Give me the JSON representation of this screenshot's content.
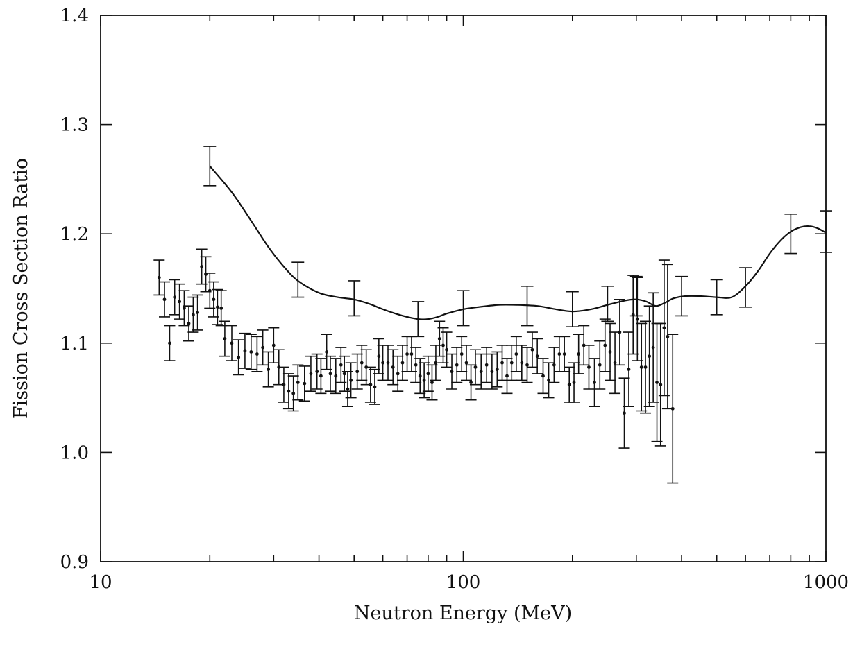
{
  "chart_data": {
    "type": "scatter",
    "title": "",
    "xlabel": "Neutron Energy (MeV)",
    "ylabel": "Fission Cross Section Ratio",
    "xscale": "log",
    "xlim": [
      10,
      1000
    ],
    "ylim": [
      0.9,
      1.4
    ],
    "x_ticks": [
      "10",
      "100",
      "1000"
    ],
    "y_ticks": [
      "0.9",
      "1.0",
      "1.1",
      "1.2",
      "1.3",
      "1.4"
    ],
    "grid": false,
    "legend": "none",
    "colors": {
      "ink": "#111111",
      "background": "#ffffff"
    },
    "series": [
      {
        "kind": "points-with-error-bars",
        "points": [
          [
            14.5,
            1.16,
            0.016
          ],
          [
            15.0,
            1.14,
            0.016
          ],
          [
            15.5,
            1.1,
            0.016
          ],
          [
            16.0,
            1.142,
            0.016
          ],
          [
            16.5,
            1.138,
            0.016
          ],
          [
            17.0,
            1.132,
            0.016
          ],
          [
            17.5,
            1.118,
            0.016
          ],
          [
            18.0,
            1.126,
            0.016
          ],
          [
            18.5,
            1.128,
            0.016
          ],
          [
            19.0,
            1.17,
            0.016
          ],
          [
            19.5,
            1.163,
            0.016
          ],
          [
            20.0,
            1.148,
            0.016
          ],
          [
            20.5,
            1.14,
            0.016
          ],
          [
            21.0,
            1.133,
            0.016
          ],
          [
            21.5,
            1.132,
            0.016
          ],
          [
            22.0,
            1.104,
            0.016
          ],
          [
            23.0,
            1.1,
            0.016
          ],
          [
            24.0,
            1.087,
            0.016
          ],
          [
            25.0,
            1.093,
            0.016
          ],
          [
            26.0,
            1.092,
            0.016
          ],
          [
            27.0,
            1.09,
            0.016
          ],
          [
            28.0,
            1.096,
            0.016
          ],
          [
            29.0,
            1.076,
            0.016
          ],
          [
            30.0,
            1.098,
            0.016
          ],
          [
            31.0,
            1.078,
            0.016
          ],
          [
            32.0,
            1.062,
            0.016
          ],
          [
            33.0,
            1.056,
            0.016
          ],
          [
            34.0,
            1.054,
            0.016
          ],
          [
            35.0,
            1.064,
            0.016
          ],
          [
            36.5,
            1.063,
            0.016
          ],
          [
            38.0,
            1.072,
            0.016
          ],
          [
            39.5,
            1.074,
            0.016
          ],
          [
            40.5,
            1.07,
            0.016
          ],
          [
            42.0,
            1.092,
            0.016
          ],
          [
            43.0,
            1.072,
            0.016
          ],
          [
            44.5,
            1.07,
            0.016
          ],
          [
            46.0,
            1.08,
            0.016
          ],
          [
            47.0,
            1.072,
            0.016
          ],
          [
            48.0,
            1.058,
            0.016
          ],
          [
            49.0,
            1.066,
            0.016
          ],
          [
            51.0,
            1.074,
            0.016
          ],
          [
            52.5,
            1.082,
            0.016
          ],
          [
            54.0,
            1.078,
            0.016
          ],
          [
            55.5,
            1.062,
            0.016
          ],
          [
            57.0,
            1.06,
            0.016
          ],
          [
            58.5,
            1.088,
            0.016
          ],
          [
            60.0,
            1.082,
            0.016
          ],
          [
            62.0,
            1.082,
            0.016
          ],
          [
            64.0,
            1.078,
            0.016
          ],
          [
            66.0,
            1.072,
            0.016
          ],
          [
            68.0,
            1.082,
            0.016
          ],
          [
            70.0,
            1.09,
            0.016
          ],
          [
            72.0,
            1.09,
            0.016
          ],
          [
            74.0,
            1.08,
            0.016
          ],
          [
            76.0,
            1.07,
            0.016
          ],
          [
            78.0,
            1.066,
            0.016
          ],
          [
            80.0,
            1.072,
            0.016
          ],
          [
            82.0,
            1.064,
            0.016
          ],
          [
            84.0,
            1.082,
            0.016
          ],
          [
            86.0,
            1.104,
            0.016
          ],
          [
            88.0,
            1.098,
            0.016
          ],
          [
            90.0,
            1.094,
            0.016
          ],
          [
            93.0,
            1.074,
            0.016
          ],
          [
            96.0,
            1.08,
            0.016
          ],
          [
            99.0,
            1.09,
            0.016
          ],
          [
            102.0,
            1.082,
            0.016
          ],
          [
            105.0,
            1.064,
            0.016
          ],
          [
            108.0,
            1.078,
            0.016
          ],
          [
            112.0,
            1.074,
            0.016
          ],
          [
            116.0,
            1.08,
            0.016
          ],
          [
            120.0,
            1.074,
            0.016
          ],
          [
            124.0,
            1.076,
            0.016
          ],
          [
            128.0,
            1.082,
            0.016
          ],
          [
            132.0,
            1.07,
            0.016
          ],
          [
            136.0,
            1.082,
            0.016
          ],
          [
            140.0,
            1.09,
            0.016
          ],
          [
            145.0,
            1.082,
            0.016
          ],
          [
            150.0,
            1.08,
            0.016
          ],
          [
            155.0,
            1.094,
            0.016
          ],
          [
            160.0,
            1.088,
            0.016
          ],
          [
            166.0,
            1.07,
            0.016
          ],
          [
            172.0,
            1.066,
            0.016
          ],
          [
            178.0,
            1.08,
            0.016
          ],
          [
            184.0,
            1.09,
            0.016
          ],
          [
            190.0,
            1.09,
            0.016
          ],
          [
            196.0,
            1.062,
            0.016
          ],
          [
            202.0,
            1.064,
            0.018
          ],
          [
            208.0,
            1.09,
            0.018
          ],
          [
            215.0,
            1.098,
            0.018
          ],
          [
            222.0,
            1.078,
            0.02
          ],
          [
            230.0,
            1.064,
            0.022
          ],
          [
            238.0,
            1.08,
            0.022
          ],
          [
            246.0,
            1.098,
            0.024
          ],
          [
            254.0,
            1.092,
            0.026
          ],
          [
            262.0,
            1.082,
            0.028
          ],
          [
            270.0,
            1.11,
            0.03
          ],
          [
            278.0,
            1.036,
            0.032
          ],
          [
            286.0,
            1.076,
            0.034
          ],
          [
            294.0,
            1.126,
            0.036
          ],
          [
            302.0,
            1.122,
            0.038
          ],
          [
            310.0,
            1.078,
            0.04
          ],
          [
            318.0,
            1.078,
            0.042
          ],
          [
            326.0,
            1.088,
            0.046
          ],
          [
            334.0,
            1.096,
            0.05
          ],
          [
            342.0,
            1.064,
            0.054
          ],
          [
            350.0,
            1.062,
            0.056
          ],
          [
            358.0,
            1.114,
            0.062
          ],
          [
            366.0,
            1.106,
            0.066
          ],
          [
            378.0,
            1.04,
            0.068
          ]
        ]
      },
      {
        "kind": "smooth-curve-with-error-bars",
        "curve": [
          [
            20,
            1.262
          ],
          [
            23,
            1.238
          ],
          [
            26,
            1.212
          ],
          [
            29,
            1.188
          ],
          [
            32,
            1.17
          ],
          [
            35,
            1.157
          ],
          [
            40,
            1.146
          ],
          [
            45,
            1.142
          ],
          [
            50,
            1.14
          ],
          [
            55,
            1.136
          ],
          [
            60,
            1.131
          ],
          [
            65,
            1.127
          ],
          [
            70,
            1.124
          ],
          [
            75,
            1.122
          ],
          [
            80,
            1.122
          ],
          [
            85,
            1.124
          ],
          [
            90,
            1.127
          ],
          [
            100,
            1.131
          ],
          [
            110,
            1.133
          ],
          [
            125,
            1.135
          ],
          [
            140,
            1.135
          ],
          [
            160,
            1.134
          ],
          [
            180,
            1.131
          ],
          [
            200,
            1.129
          ],
          [
            225,
            1.131
          ],
          [
            250,
            1.135
          ],
          [
            280,
            1.139
          ],
          [
            300,
            1.14
          ],
          [
            320,
            1.138
          ],
          [
            340,
            1.134
          ],
          [
            360,
            1.137
          ],
          [
            380,
            1.141
          ],
          [
            410,
            1.143
          ],
          [
            450,
            1.143
          ],
          [
            500,
            1.142
          ],
          [
            550,
            1.142
          ],
          [
            600,
            1.152
          ],
          [
            650,
            1.166
          ],
          [
            700,
            1.182
          ],
          [
            750,
            1.194
          ],
          [
            800,
            1.202
          ],
          [
            850,
            1.206
          ],
          [
            900,
            1.207
          ],
          [
            950,
            1.205
          ],
          [
            1000,
            1.201
          ]
        ],
        "error_bars": [
          [
            20,
            1.262,
            0.018
          ],
          [
            35,
            1.158,
            0.016
          ],
          [
            50,
            1.141,
            0.016
          ],
          [
            75,
            1.122,
            0.016
          ],
          [
            100,
            1.132,
            0.016
          ],
          [
            150,
            1.134,
            0.018
          ],
          [
            200,
            1.131,
            0.016
          ],
          [
            250,
            1.136,
            0.016
          ],
          [
            300,
            1.143,
            0.018
          ],
          [
            400,
            1.143,
            0.018
          ],
          [
            500,
            1.142,
            0.016
          ],
          [
            600,
            1.151,
            0.018
          ],
          [
            800,
            1.2,
            0.018
          ],
          [
            1000,
            1.202,
            0.019
          ]
        ]
      }
    ]
  }
}
